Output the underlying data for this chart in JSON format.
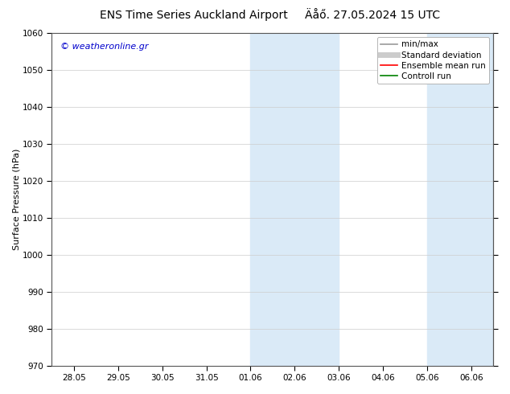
{
  "title_left": "ENS Time Series Auckland Airport",
  "title_right": "Äåő. 27.05.2024 15 UTC",
  "ylabel": "Surface Pressure (hPa)",
  "ylim": [
    970,
    1060
  ],
  "yticks": [
    970,
    980,
    990,
    1000,
    1010,
    1020,
    1030,
    1040,
    1050,
    1060
  ],
  "xtick_labels": [
    "28.05",
    "29.05",
    "30.05",
    "31.05",
    "01.06",
    "02.06",
    "03.06",
    "04.06",
    "05.06",
    "06.06"
  ],
  "xtick_positions": [
    0,
    1,
    2,
    3,
    4,
    5,
    6,
    7,
    8,
    9
  ],
  "shaded_bands": [
    {
      "xmin": 4.0,
      "xmax": 6.0
    },
    {
      "xmin": 8.0,
      "xmax": 9.5
    }
  ],
  "shade_color": "#daeaf7",
  "watermark_text": "© weatheronline.gr",
  "watermark_color": "#0000cc",
  "legend_entries": [
    {
      "label": "min/max",
      "color": "#999999",
      "lw": 1.2
    },
    {
      "label": "Standard deviation",
      "color": "#cccccc",
      "lw": 5
    },
    {
      "label": "Ensemble mean run",
      "color": "#ff0000",
      "lw": 1.2
    },
    {
      "label": "Controll run",
      "color": "#008000",
      "lw": 1.2
    }
  ],
  "bg_color": "#ffffff",
  "plot_bg_color": "#ffffff",
  "grid_color": "#cccccc",
  "title_fontsize": 10,
  "axis_label_fontsize": 8,
  "tick_fontsize": 7.5,
  "legend_fontsize": 7.5,
  "watermark_fontsize": 8
}
